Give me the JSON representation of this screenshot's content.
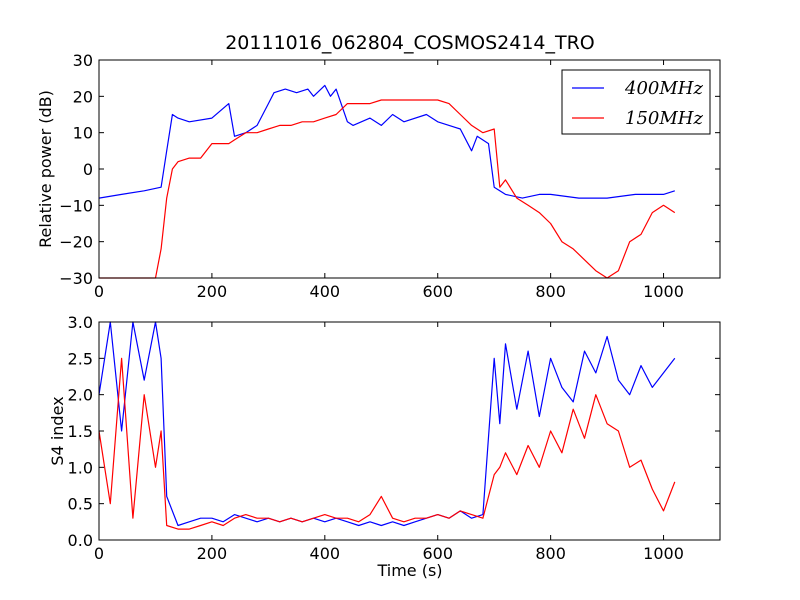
{
  "chart_data": [
    {
      "type": "line",
      "title": "20111016_062804_COSMOS2414_TRO",
      "xlabel": "",
      "ylabel": "Relative power (dB)",
      "xlim": [
        0,
        1100
      ],
      "ylim": [
        -30,
        30
      ],
      "xticks": [
        "0",
        "200",
        "400",
        "600",
        "800",
        "1000"
      ],
      "yticks": [
        "30",
        "20",
        "10",
        "0",
        "−10",
        "−20",
        "−30"
      ],
      "legend": {
        "placement": "top-right"
      },
      "series": [
        {
          "name": "400MHz",
          "color": "#0000ff",
          "x": [
            0,
            40,
            80,
            110,
            120,
            130,
            140,
            160,
            200,
            230,
            240,
            260,
            280,
            300,
            310,
            330,
            350,
            370,
            380,
            400,
            410,
            420,
            440,
            450,
            480,
            500,
            520,
            540,
            580,
            600,
            640,
            660,
            670,
            690,
            700,
            720,
            750,
            780,
            800,
            850,
            900,
            950,
            1000,
            1020
          ],
          "y": [
            -8,
            -7,
            -6,
            -5,
            5,
            15,
            14,
            13,
            14,
            18,
            9,
            10,
            12,
            18,
            21,
            22,
            21,
            22,
            20,
            23,
            20,
            22,
            13,
            12,
            14,
            12,
            15,
            13,
            15,
            13,
            11,
            5,
            9,
            7,
            -5,
            -7,
            -8,
            -7,
            -7,
            -8,
            -8,
            -7,
            -7,
            -6
          ]
        },
        {
          "name": "150MHz",
          "color": "#ff0000",
          "x": [
            0,
            60,
            80,
            100,
            110,
            120,
            130,
            140,
            160,
            180,
            200,
            230,
            240,
            260,
            280,
            300,
            320,
            340,
            360,
            380,
            400,
            420,
            440,
            460,
            480,
            500,
            540,
            560,
            580,
            600,
            620,
            640,
            660,
            680,
            700,
            710,
            720,
            740,
            760,
            780,
            800,
            820,
            840,
            860,
            880,
            900,
            920,
            940,
            960,
            980,
            1000,
            1020
          ],
          "y": [
            -30,
            -30,
            -30,
            -30,
            -22,
            -8,
            0,
            2,
            3,
            3,
            7,
            7,
            8,
            10,
            10,
            11,
            12,
            12,
            13,
            13,
            14,
            15,
            18,
            18,
            18,
            19,
            19,
            19,
            19,
            19,
            18,
            15,
            12,
            10,
            11,
            -5,
            -3,
            -8,
            -10,
            -12,
            -15,
            -20,
            -22,
            -25,
            -28,
            -30,
            -28,
            -20,
            -18,
            -12,
            -10,
            -12
          ]
        }
      ]
    },
    {
      "type": "line",
      "title": "",
      "xlabel": "Time (s)",
      "ylabel": "S4 index",
      "xlim": [
        0,
        1100
      ],
      "ylim": [
        0,
        3
      ],
      "xticks": [
        "0",
        "200",
        "400",
        "600",
        "800",
        "1000"
      ],
      "yticks": [
        "3.0",
        "2.5",
        "2.0",
        "1.5",
        "1.0",
        "0.5",
        "0.0"
      ],
      "series": [
        {
          "name": "400MHz",
          "color": "#0000ff",
          "x": [
            0,
            20,
            40,
            60,
            80,
            100,
            110,
            120,
            140,
            160,
            180,
            200,
            220,
            240,
            260,
            280,
            300,
            320,
            340,
            360,
            380,
            400,
            420,
            440,
            460,
            480,
            500,
            520,
            540,
            560,
            580,
            600,
            620,
            640,
            660,
            680,
            700,
            710,
            720,
            740,
            760,
            780,
            800,
            820,
            840,
            860,
            880,
            900,
            920,
            940,
            960,
            980,
            1000,
            1020
          ],
          "y": [
            2.0,
            3.0,
            1.5,
            3.0,
            2.2,
            3.0,
            2.5,
            0.6,
            0.2,
            0.25,
            0.3,
            0.3,
            0.25,
            0.35,
            0.3,
            0.25,
            0.3,
            0.25,
            0.3,
            0.25,
            0.3,
            0.25,
            0.3,
            0.25,
            0.2,
            0.25,
            0.2,
            0.25,
            0.2,
            0.25,
            0.3,
            0.35,
            0.3,
            0.4,
            0.3,
            0.35,
            2.5,
            1.6,
            2.7,
            1.8,
            2.6,
            1.7,
            2.5,
            2.1,
            1.9,
            2.6,
            2.3,
            2.8,
            2.2,
            2.0,
            2.4,
            2.1,
            2.3,
            2.5
          ]
        },
        {
          "name": "150MHz",
          "color": "#ff0000",
          "x": [
            0,
            20,
            40,
            60,
            80,
            100,
            110,
            120,
            140,
            160,
            180,
            200,
            220,
            240,
            260,
            280,
            300,
            320,
            340,
            360,
            380,
            400,
            420,
            440,
            460,
            480,
            500,
            520,
            540,
            560,
            580,
            600,
            620,
            640,
            660,
            680,
            700,
            710,
            720,
            740,
            760,
            780,
            800,
            820,
            840,
            860,
            880,
            900,
            920,
            940,
            960,
            980,
            1000,
            1020
          ],
          "y": [
            1.5,
            0.5,
            2.5,
            0.3,
            2.0,
            1.0,
            1.5,
            0.2,
            0.15,
            0.15,
            0.2,
            0.25,
            0.2,
            0.3,
            0.35,
            0.3,
            0.3,
            0.25,
            0.3,
            0.25,
            0.3,
            0.35,
            0.3,
            0.3,
            0.25,
            0.35,
            0.6,
            0.3,
            0.25,
            0.3,
            0.3,
            0.35,
            0.3,
            0.4,
            0.35,
            0.3,
            0.9,
            1.0,
            1.2,
            0.9,
            1.3,
            1.0,
            1.5,
            1.2,
            1.8,
            1.4,
            2.0,
            1.6,
            1.5,
            1.0,
            1.1,
            0.7,
            0.4,
            0.8
          ]
        }
      ]
    }
  ]
}
